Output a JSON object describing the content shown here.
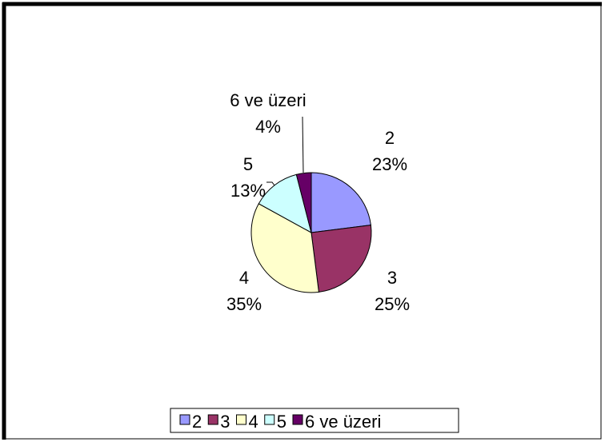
{
  "chart_data": {
    "type": "pie",
    "categories": [
      "2",
      "3",
      "4",
      "5",
      "6 ve üzeri"
    ],
    "values": [
      23,
      25,
      35,
      13,
      4
    ],
    "value_labels": [
      "23%",
      "25%",
      "35%",
      "13%",
      "4%"
    ],
    "colors": [
      "#9999ff",
      "#993366",
      "#ffffcc",
      "#ccffff",
      "#660066"
    ],
    "legend": "bottom"
  }
}
